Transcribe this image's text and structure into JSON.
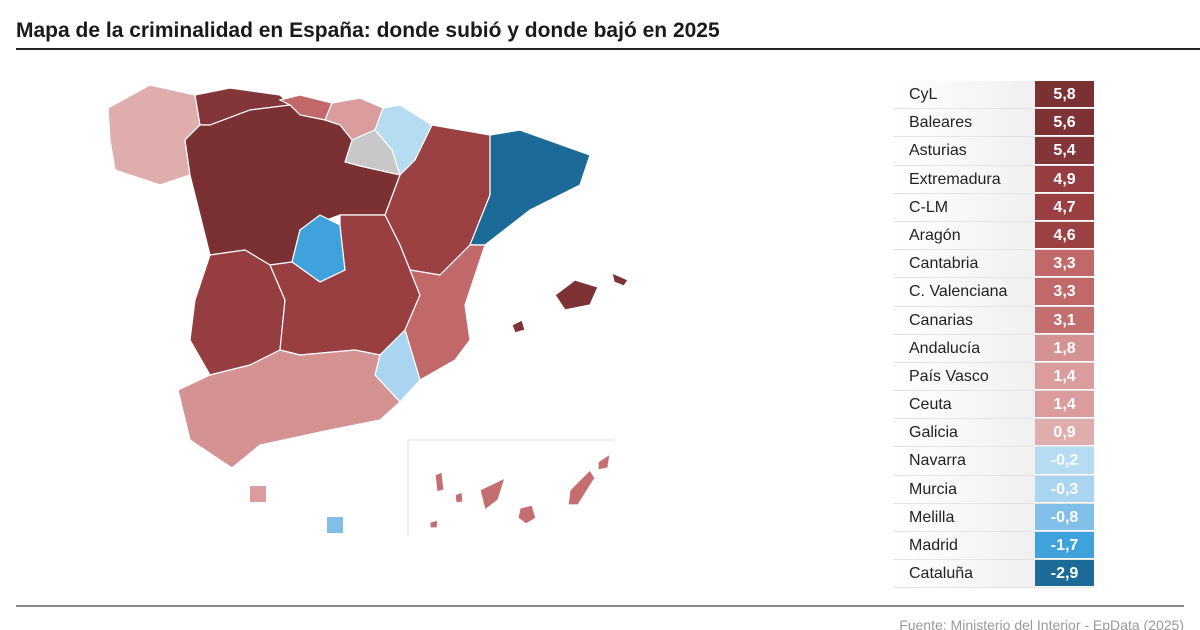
{
  "title": "Mapa de la criminalidad en España: donde subió y donde bajó en 2025",
  "source": "Fuente: Ministerio del Interior - EpData (2025)",
  "colors": {
    "no_data": "#c8c8c8"
  },
  "rows": [
    {
      "name": "CyL",
      "value": "5,8",
      "color": "#7b3034"
    },
    {
      "name": "Baleares",
      "value": "5,6",
      "color": "#7f3236"
    },
    {
      "name": "Asturias",
      "value": "5,4",
      "color": "#84353a"
    },
    {
      "name": "Extremadura",
      "value": "4,9",
      "color": "#953d40"
    },
    {
      "name": "C-LM",
      "value": "4,7",
      "color": "#993f42"
    },
    {
      "name": "Aragón",
      "value": "4,6",
      "color": "#9b4043"
    },
    {
      "name": "Cantabria",
      "value": "3,3",
      "color": "#c0686a"
    },
    {
      "name": "C. Valenciana",
      "value": "3,3",
      "color": "#c0686a"
    },
    {
      "name": "Canarias",
      "value": "3,1",
      "color": "#c46e70"
    },
    {
      "name": "Andalucía",
      "value": "1,8",
      "color": "#d59293"
    },
    {
      "name": "País Vasco",
      "value": "1,4",
      "color": "#da9c9d"
    },
    {
      "name": "Ceuta",
      "value": "1,4",
      "color": "#da9c9d"
    },
    {
      "name": "Galicia",
      "value": "0,9",
      "color": "#e0adad"
    },
    {
      "name": "Navarra",
      "value": "-0,2",
      "color": "#b6dcf2"
    },
    {
      "name": "Murcia",
      "value": "-0,3",
      "color": "#a9d5f0"
    },
    {
      "name": "Melilla",
      "value": "-0,8",
      "color": "#7fbfe8"
    },
    {
      "name": "Madrid",
      "value": "-1,7",
      "color": "#3fa2dc"
    },
    {
      "name": "Cataluña",
      "value": "-2,9",
      "color": "#1c6a98"
    }
  ]
}
